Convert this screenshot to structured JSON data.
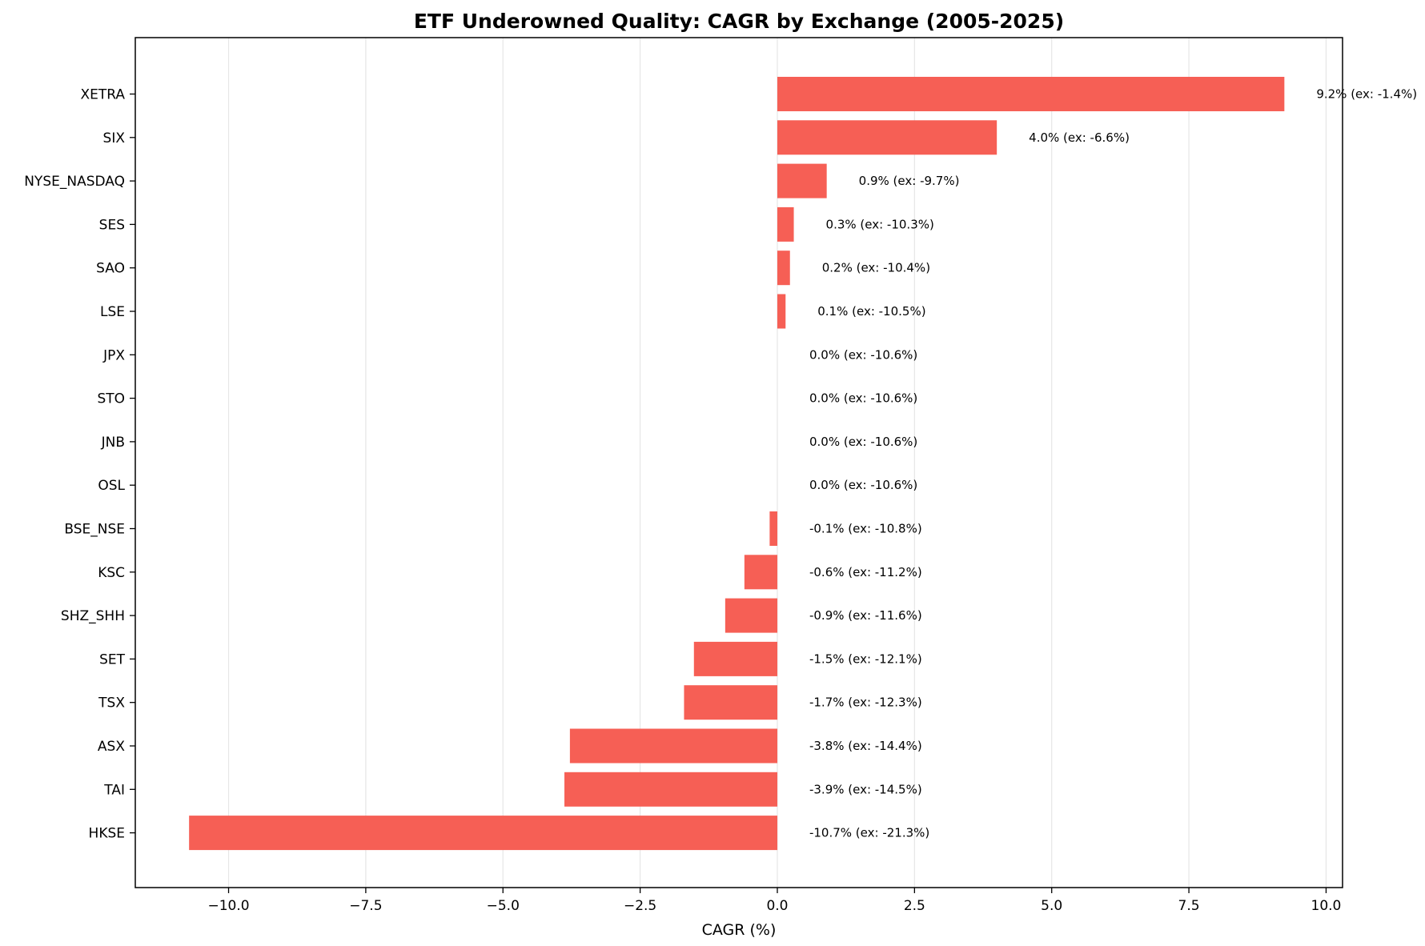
{
  "chart_data": {
    "type": "bar",
    "orientation": "horizontal",
    "title": "ETF Underowned Quality: CAGR by Exchange (2005-2025)",
    "xlabel": "CAGR (%)",
    "ylabel": "",
    "xlim": [
      -11.7,
      10.3
    ],
    "xticks": [
      -10.0,
      -7.5,
      -5.0,
      -2.5,
      0.0,
      2.5,
      5.0,
      7.5,
      10.0
    ],
    "xtick_labels": [
      "−10.0",
      "−7.5",
      "−5.0",
      "−2.5",
      "0.0",
      "2.5",
      "5.0",
      "7.5",
      "10.0"
    ],
    "grid": "vertical",
    "bar_color": "#f65f55",
    "categories": [
      "XETRA",
      "SIX",
      "NYSE_NASDAQ",
      "SES",
      "SAO",
      "LSE",
      "JPX",
      "STO",
      "JNB",
      "OSL",
      "BSE_NSE",
      "KSC",
      "SHZ_SHH",
      "SET",
      "TSX",
      "ASX",
      "TAI",
      "HKSE"
    ],
    "values": [
      9.24,
      4.0,
      0.9,
      0.3,
      0.23,
      0.15,
      0.0,
      0.0,
      0.0,
      0.0,
      -0.14,
      -0.6,
      -0.95,
      -1.52,
      -1.7,
      -3.78,
      -3.88,
      -10.72
    ],
    "labels": [
      "9.2% (ex: -1.4%)",
      "4.0% (ex: -6.6%)",
      "0.9% (ex: -9.7%)",
      "0.3% (ex: -10.3%)",
      "0.2% (ex: -10.4%)",
      "0.1% (ex: -10.5%)",
      "0.0% (ex: -10.6%)",
      "0.0% (ex: -10.6%)",
      "0.0% (ex: -10.6%)",
      "0.0% (ex: -10.6%)",
      "-0.1% (ex: -10.8%)",
      "-0.6% (ex: -11.2%)",
      "-0.9% (ex: -11.6%)",
      "-1.5% (ex: -12.1%)",
      "-1.7% (ex: -12.3%)",
      "-3.8% (ex: -14.4%)",
      "-3.9% (ex: -14.5%)",
      "-10.7% (ex: -21.3%)"
    ]
  }
}
